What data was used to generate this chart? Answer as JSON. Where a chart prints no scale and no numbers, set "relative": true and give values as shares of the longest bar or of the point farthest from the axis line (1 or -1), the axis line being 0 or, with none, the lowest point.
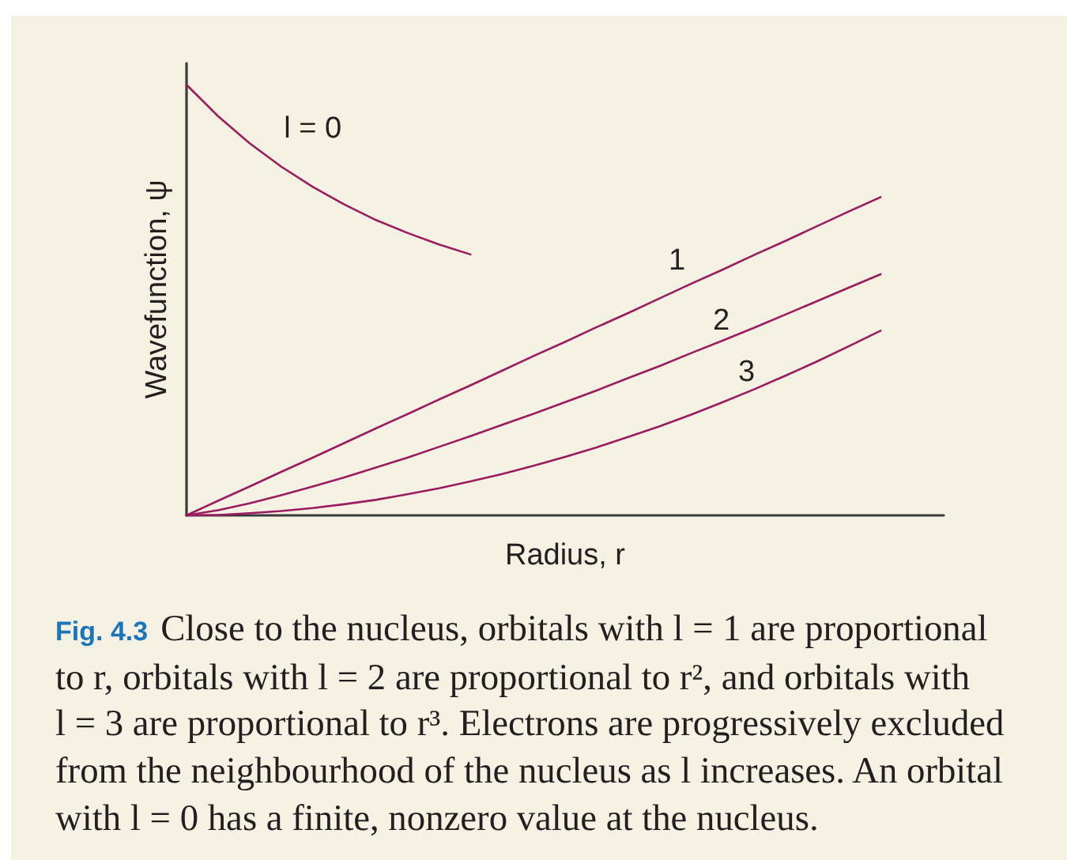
{
  "chart_data": {
    "type": "line",
    "xlabel": "Radius, r",
    "ylabel": "Wavefunction, ψ",
    "relative": true,
    "marker": "none",
    "categories": [
      null,
      null,
      null,
      null,
      null,
      null,
      null,
      null,
      null,
      null,
      null,
      null,
      null,
      null,
      null,
      null,
      null,
      null,
      null,
      null,
      null,
      null,
      null,
      null,
      null
    ],
    "series": [
      {
        "name": "l = 0",
        "color": "#9b1b5f",
        "values": [
          1,
          0.927,
          0.864,
          0.81,
          0.763,
          0.722,
          0.686,
          0.656,
          0.629,
          0.606,
          null,
          null,
          null,
          null,
          null,
          null,
          null,
          null,
          null,
          null,
          null,
          null,
          null,
          null,
          null
        ]
      },
      {
        "name": "1",
        "color": "#9b1b5f",
        "values": [
          0,
          0.034,
          0.067,
          0.101,
          0.134,
          0.168,
          0.202,
          0.235,
          0.269,
          0.302,
          0.336,
          0.37,
          0.403,
          0.437,
          0.47,
          0.504,
          0.538,
          0.571,
          0.605,
          0.638,
          0.672,
          0.706,
          0.739,
          null,
          null
        ]
      },
      {
        "name": "2",
        "color": "#9b1b5f",
        "values": [
          0,
          0.012,
          0.028,
          0.047,
          0.067,
          0.088,
          0.111,
          0.134,
          0.159,
          0.184,
          0.21,
          0.236,
          0.263,
          0.29,
          0.319,
          0.347,
          0.377,
          0.406,
          0.436,
          0.467,
          0.498,
          0.529,
          0.56,
          null,
          null
        ]
      },
      {
        "name": "3",
        "color": "#9b1b5f",
        "values": [
          0,
          0.001,
          0.005,
          0.01,
          0.017,
          0.026,
          0.036,
          0.049,
          0.063,
          0.079,
          0.096,
          0.115,
          0.136,
          0.158,
          0.182,
          0.207,
          0.234,
          0.263,
          0.293,
          0.325,
          0.358,
          0.393,
          0.429,
          null,
          null
        ]
      }
    ],
    "annotations": [
      "Fig. 4.3 Close to the nucleus, orbitals with l = 1 are proportional to r, orbitals with l = 2 are proportional to r², and orbitals with l = 3 are proportional to r³. Electrons are progressively excluded from the neighbourhood of the nucleus as l increases. An orbital with l = 0 has a finite, nonzero value at the nucleus."
    ]
  }
}
